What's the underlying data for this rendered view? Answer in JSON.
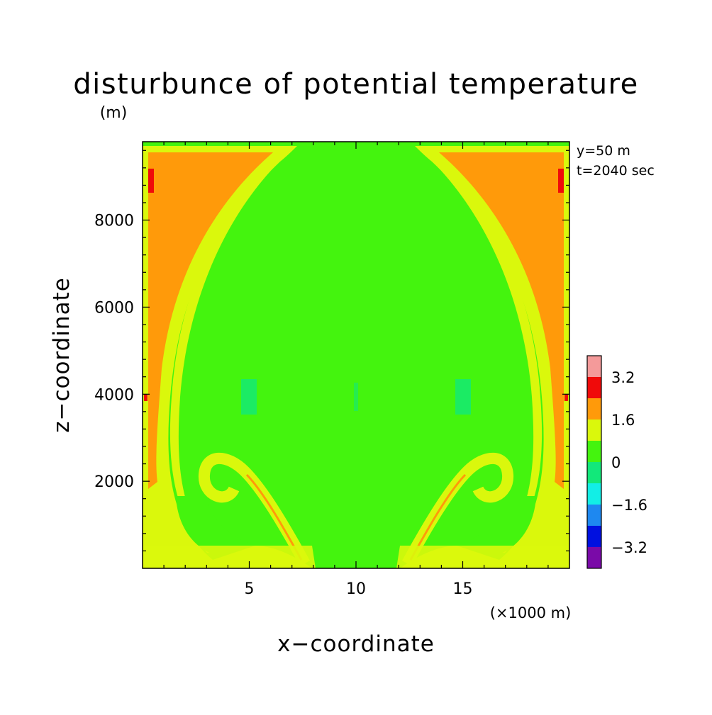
{
  "chart_data": {
    "type": "heatmap",
    "title": "disturbunce of potential temperature",
    "unit_label": "(m)",
    "xlabel": "x−coordinate",
    "ylabel": "z−coordinate",
    "x_unit_note": "(×1000 m)",
    "xlim": [
      0,
      20
    ],
    "ylim": [
      0,
      9800
    ],
    "x_ticks": [
      {
        "value": 5,
        "label": "5"
      },
      {
        "value": 10,
        "label": "10"
      },
      {
        "value": 15,
        "label": "15"
      }
    ],
    "y_ticks": [
      {
        "value": 2000,
        "label": "2000"
      },
      {
        "value": 4000,
        "label": "4000"
      },
      {
        "value": 6000,
        "label": "6000"
      },
      {
        "value": 8000,
        "label": "8000"
      }
    ],
    "annotations": [
      "y=50 m",
      "t=2040 sec"
    ],
    "colorbar": {
      "levels": [
        {
          "range": [
            -4.0,
            -3.2
          ],
          "color": "#7a0aa8"
        },
        {
          "range": [
            -3.2,
            -2.4
          ],
          "color": "#0010e0"
        },
        {
          "range": [
            -2.4,
            -1.6
          ],
          "color": "#1e88f0"
        },
        {
          "range": [
            -1.6,
            -0.8
          ],
          "color": "#12eee6"
        },
        {
          "range": [
            -0.8,
            0.0
          ],
          "color": "#12e87a"
        },
        {
          "range": [
            0.0,
            0.8
          ],
          "color": "#44f40e"
        },
        {
          "range": [
            0.8,
            1.6
          ],
          "color": "#daf80c"
        },
        {
          "range": [
            1.6,
            2.4
          ],
          "color": "#ff9a0a"
        },
        {
          "range": [
            2.4,
            3.2
          ],
          "color": "#f00a0a"
        },
        {
          "range": [
            3.2,
            4.0
          ],
          "color": "#f49a9a"
        }
      ],
      "tick_labels": [
        {
          "value": -3.2,
          "label": "−3.2"
        },
        {
          "value": -1.6,
          "label": "−1.6"
        },
        {
          "value": 0,
          "label": "0"
        },
        {
          "value": 1.6,
          "label": "1.6"
        },
        {
          "value": 3.2,
          "label": "3.2"
        }
      ]
    },
    "field_description": {
      "background_level": "0 to 0.8",
      "warm_side_regions": "0.8 to 2.4 near both lateral walls, with spiral vortices near z=2000 at x≈4 and x≈16",
      "colors": {
        "background": "#44f40e",
        "yellow": "#daf80c",
        "orange": "#ff9a0a",
        "red": "#f00a0a",
        "cold": "#12e87a"
      }
    }
  }
}
